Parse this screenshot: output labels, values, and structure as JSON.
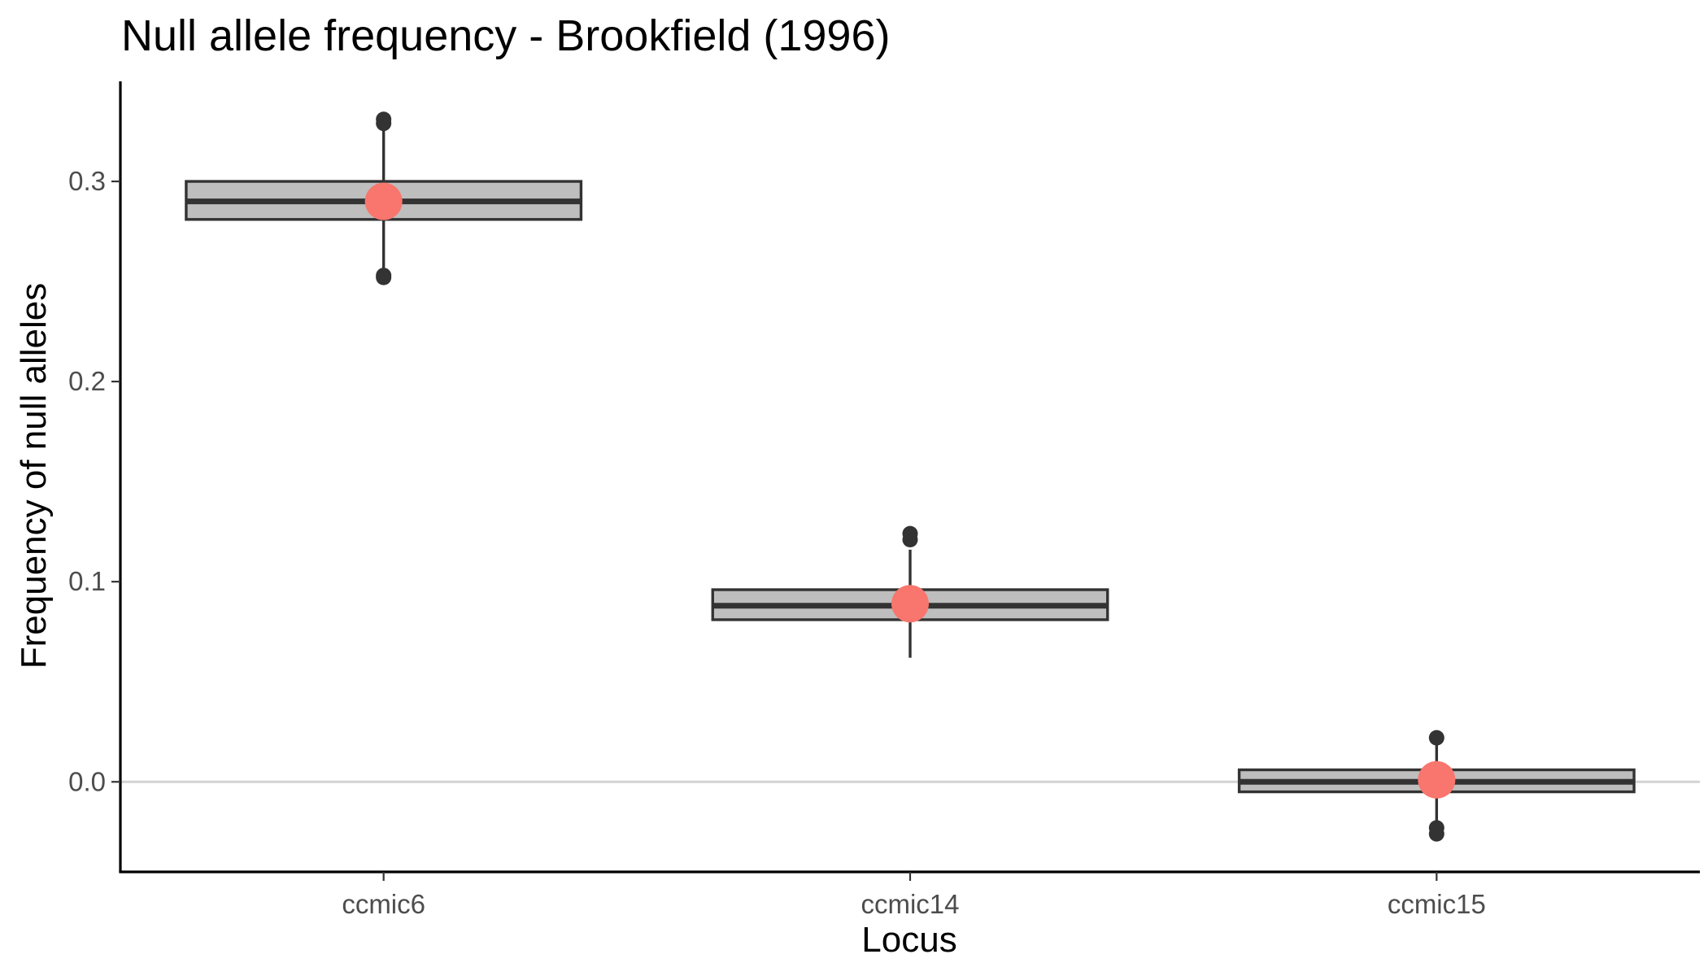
{
  "chart_data": {
    "type": "boxplot",
    "title": "Null allele frequency - Brookfield (1996)",
    "xlabel": "Locus",
    "ylabel": "Frequency of null alleles",
    "categories": [
      "ccmic6",
      "ccmic14",
      "ccmic15"
    ],
    "ylim": [
      -0.045,
      0.35
    ],
    "yticks": [
      0.0,
      0.1,
      0.2,
      0.3
    ],
    "ytick_labels": [
      "0.0",
      "0.1",
      "0.2",
      "0.3"
    ],
    "reference_line": 0.0,
    "grid": false,
    "legend": "none",
    "boxes": [
      {
        "category": "ccmic6",
        "q1": 0.281,
        "median": 0.29,
        "q3": 0.3,
        "whisker_low": 0.256,
        "whisker_high": 0.326,
        "outliers": [
          0.252,
          0.253,
          0.329,
          0.331
        ],
        "point": 0.29
      },
      {
        "category": "ccmic14",
        "q1": 0.081,
        "median": 0.088,
        "q3": 0.096,
        "whisker_low": 0.062,
        "whisker_high": 0.116,
        "outliers": [
          0.121,
          0.124
        ],
        "point": 0.089
      },
      {
        "category": "ccmic15",
        "q1": -0.005,
        "median": 0.0,
        "q3": 0.006,
        "whisker_low": -0.02,
        "whisker_high": 0.02,
        "outliers": [
          -0.023,
          -0.026,
          0.022
        ],
        "point": 0.001
      }
    ],
    "colors": {
      "box_fill": "#bebebe",
      "box_stroke": "#333333",
      "outlier": "#333333",
      "point": "#f8766d",
      "reference_line": "#d3d3d3",
      "axis": "#000000",
      "tick_label": "#4d4d4d"
    }
  }
}
